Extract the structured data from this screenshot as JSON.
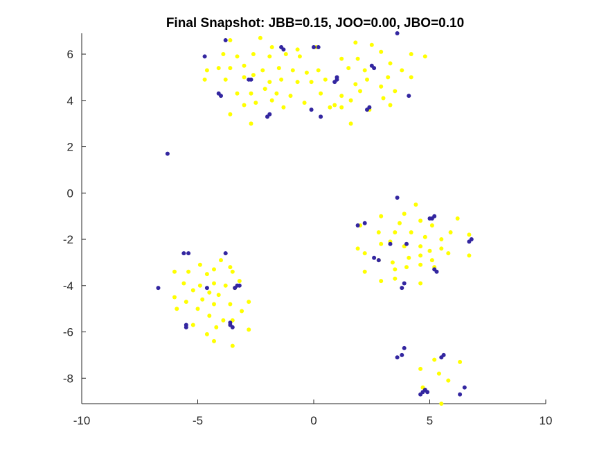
{
  "chart_data": {
    "type": "scatter",
    "title": "Final Snapshot: JBB=0.15, JOO=0.00, JBO=0.10",
    "xlabel": "",
    "ylabel": "",
    "xlim": [
      -10,
      10
    ],
    "ylim": [
      -9.1,
      6.9
    ],
    "xticks": [
      -10,
      -5,
      0,
      5,
      10
    ],
    "yticks": [
      -8,
      -6,
      -4,
      -2,
      0,
      2,
      4,
      6
    ],
    "grid": false,
    "legend": "none",
    "series": [
      {
        "color": "#ffff00",
        "points": [
          [
            -3.6,
            6.6
          ],
          [
            -2.3,
            6.7
          ],
          [
            -1.8,
            6.3
          ],
          [
            -0.7,
            6.2
          ],
          [
            0.1,
            6.3
          ],
          [
            1.8,
            6.5
          ],
          [
            2.5,
            6.4
          ],
          [
            -3.9,
            6.0
          ],
          [
            -3.3,
            5.9
          ],
          [
            -2.6,
            6.0
          ],
          [
            -1.9,
            5.9
          ],
          [
            -1.2,
            6.0
          ],
          [
            -0.6,
            5.9
          ],
          [
            1.2,
            5.8
          ],
          [
            1.9,
            5.8
          ],
          [
            2.9,
            6.1
          ],
          [
            4.2,
            6.0
          ],
          [
            -4.6,
            5.3
          ],
          [
            -4.1,
            5.4
          ],
          [
            -3.6,
            5.4
          ],
          [
            -3.0,
            5.5
          ],
          [
            -2.2,
            5.3
          ],
          [
            -1.5,
            5.4
          ],
          [
            -0.9,
            5.3
          ],
          [
            -0.3,
            5.2
          ],
          [
            0.2,
            5.3
          ],
          [
            1.5,
            5.4
          ],
          [
            2.2,
            5.3
          ],
          [
            3.3,
            5.6
          ],
          [
            3.8,
            5.3
          ],
          [
            4.8,
            5.9
          ],
          [
            -4.7,
            4.9
          ],
          [
            -3.8,
            4.9
          ],
          [
            -3.0,
            5.0
          ],
          [
            -2.6,
            5.1
          ],
          [
            -1.9,
            4.8
          ],
          [
            -1.4,
            4.9
          ],
          [
            -0.7,
            4.8
          ],
          [
            -0.1,
            4.8
          ],
          [
            0.5,
            4.9
          ],
          [
            1.8,
            4.7
          ],
          [
            2.3,
            4.9
          ],
          [
            2.9,
            4.6
          ],
          [
            3.2,
            5.0
          ],
          [
            4.2,
            5.0
          ],
          [
            -3.3,
            4.3
          ],
          [
            -2.7,
            4.3
          ],
          [
            -2.1,
            4.5
          ],
          [
            -1.6,
            4.3
          ],
          [
            -1.0,
            4.2
          ],
          [
            0.3,
            4.3
          ],
          [
            1.2,
            4.2
          ],
          [
            1.6,
            4.0
          ],
          [
            2.0,
            4.4
          ],
          [
            3.0,
            4.1
          ],
          [
            3.5,
            4.4
          ],
          [
            -3.0,
            3.8
          ],
          [
            -2.5,
            3.9
          ],
          [
            -1.8,
            4.0
          ],
          [
            -1.3,
            3.7
          ],
          [
            -0.4,
            3.9
          ],
          [
            0.9,
            3.8
          ],
          [
            1.2,
            3.7
          ],
          [
            3.3,
            3.8
          ],
          [
            -3.6,
            3.4
          ],
          [
            -2.7,
            3.0
          ],
          [
            0.7,
            3.7
          ],
          [
            1.6,
            3.0
          ],
          [
            2.4,
            3.6
          ],
          [
            4.4,
            -0.5
          ],
          [
            3.9,
            -0.9
          ],
          [
            2.9,
            -1.0
          ],
          [
            3.7,
            -1.3
          ],
          [
            4.6,
            -1.2
          ],
          [
            5.1,
            -1.4
          ],
          [
            6.2,
            -1.1
          ],
          [
            2.0,
            -1.4
          ],
          [
            2.8,
            -1.7
          ],
          [
            3.5,
            -1.7
          ],
          [
            4.2,
            -1.7
          ],
          [
            4.8,
            -1.9
          ],
          [
            5.5,
            -2.0
          ],
          [
            5.9,
            -1.7
          ],
          [
            6.7,
            -1.8
          ],
          [
            1.9,
            -2.4
          ],
          [
            2.9,
            -2.2
          ],
          [
            3.3,
            -2.1
          ],
          [
            3.9,
            -2.3
          ],
          [
            4.6,
            -2.3
          ],
          [
            5.0,
            -2.5
          ],
          [
            5.5,
            -2.4
          ],
          [
            2.2,
            -2.6
          ],
          [
            2.8,
            -2.9
          ],
          [
            3.4,
            -3.0
          ],
          [
            4.1,
            -2.8
          ],
          [
            4.6,
            -2.7
          ],
          [
            5.1,
            -2.9
          ],
          [
            5.8,
            -2.6
          ],
          [
            6.7,
            -2.7
          ],
          [
            2.2,
            -3.4
          ],
          [
            3.5,
            -3.3
          ],
          [
            4.0,
            -3.2
          ],
          [
            4.6,
            -3.1
          ],
          [
            5.2,
            -3.2
          ],
          [
            2.9,
            -3.8
          ],
          [
            3.5,
            -3.7
          ],
          [
            4.6,
            -3.9
          ],
          [
            -4.0,
            -2.9
          ],
          [
            -4.9,
            -3.1
          ],
          [
            -4.3,
            -3.3
          ],
          [
            -3.6,
            -3.2
          ],
          [
            -3.5,
            -3.4
          ],
          [
            -6.0,
            -3.4
          ],
          [
            -5.4,
            -3.4
          ],
          [
            -4.6,
            -3.5
          ],
          [
            -3.2,
            -3.8
          ],
          [
            -5.6,
            -3.9
          ],
          [
            -4.9,
            -4.0
          ],
          [
            -4.3,
            -3.9
          ],
          [
            -3.8,
            -4.0
          ],
          [
            -3.4,
            -4.1
          ],
          [
            -5.2,
            -4.2
          ],
          [
            -4.5,
            -4.3
          ],
          [
            -4.1,
            -4.4
          ],
          [
            -6.0,
            -4.5
          ],
          [
            -5.5,
            -4.7
          ],
          [
            -4.8,
            -4.6
          ],
          [
            -4.3,
            -4.8
          ],
          [
            -3.6,
            -4.8
          ],
          [
            -2.8,
            -4.7
          ],
          [
            -5.9,
            -5.0
          ],
          [
            -5.0,
            -5.0
          ],
          [
            -3.1,
            -5.1
          ],
          [
            -4.5,
            -5.3
          ],
          [
            -3.5,
            -5.5
          ],
          [
            -3.9,
            -5.5
          ],
          [
            -5.2,
            -5.7
          ],
          [
            -4.2,
            -5.8
          ],
          [
            -2.8,
            -5.9
          ],
          [
            -4.6,
            -6.1
          ],
          [
            -4.3,
            -6.4
          ],
          [
            -3.5,
            -6.6
          ],
          [
            5.2,
            -7.2
          ],
          [
            6.3,
            -7.3
          ],
          [
            4.6,
            -7.6
          ],
          [
            5.4,
            -7.8
          ],
          [
            5.8,
            -8.1
          ],
          [
            4.7,
            -8.4
          ],
          [
            5.5,
            -9.1
          ]
        ]
      },
      {
        "color": "#3326a0",
        "points": [
          [
            -4.7,
            5.9
          ],
          [
            -3.8,
            6.6
          ],
          [
            -1.4,
            6.3
          ],
          [
            -1.3,
            6.2
          ],
          [
            0.0,
            6.3
          ],
          [
            0.2,
            6.3
          ],
          [
            3.6,
            6.9
          ],
          [
            1.0,
            4.9
          ],
          [
            1.0,
            5.0
          ],
          [
            0.9,
            4.8
          ],
          [
            -2.7,
            4.9
          ],
          [
            -2.8,
            4.9
          ],
          [
            2.5,
            5.5
          ],
          [
            2.6,
            5.4
          ],
          [
            -4.1,
            4.3
          ],
          [
            -4.0,
            4.2
          ],
          [
            -1.9,
            3.4
          ],
          [
            -2.0,
            3.3
          ],
          [
            -0.1,
            3.6
          ],
          [
            0.3,
            3.3
          ],
          [
            2.4,
            3.7
          ],
          [
            2.3,
            3.6
          ],
          [
            4.1,
            4.2
          ],
          [
            -6.3,
            1.7
          ],
          [
            3.6,
            -0.2
          ],
          [
            5.1,
            -1.1
          ],
          [
            5.2,
            -1.0
          ],
          [
            5.0,
            -1.1
          ],
          [
            2.2,
            -1.3
          ],
          [
            1.9,
            -1.4
          ],
          [
            4.0,
            -2.2
          ],
          [
            3.3,
            -2.2
          ],
          [
            6.8,
            -2.0
          ],
          [
            6.7,
            -2.1
          ],
          [
            2.6,
            -2.8
          ],
          [
            2.8,
            -2.9
          ],
          [
            5.2,
            -3.3
          ],
          [
            5.3,
            -3.4
          ],
          [
            3.9,
            -3.9
          ],
          [
            3.8,
            -4.1
          ],
          [
            -5.6,
            -2.6
          ],
          [
            -5.4,
            -2.6
          ],
          [
            -3.8,
            -2.6
          ],
          [
            -3.3,
            -4.0
          ],
          [
            -3.4,
            -4.1
          ],
          [
            -3.2,
            -4.0
          ],
          [
            -4.6,
            -4.1
          ],
          [
            -6.7,
            -4.1
          ],
          [
            -5.5,
            -5.7
          ],
          [
            -5.5,
            -5.8
          ],
          [
            -3.6,
            -5.6
          ],
          [
            -3.6,
            -5.7
          ],
          [
            -3.5,
            -5.8
          ],
          [
            3.9,
            -6.7
          ],
          [
            3.8,
            -7.0
          ],
          [
            3.6,
            -7.1
          ],
          [
            5.6,
            -7.0
          ],
          [
            5.5,
            -7.1
          ],
          [
            6.5,
            -8.4
          ],
          [
            6.3,
            -8.7
          ],
          [
            4.8,
            -8.5
          ],
          [
            4.7,
            -8.6
          ],
          [
            4.6,
            -8.7
          ],
          [
            4.9,
            -8.6
          ]
        ]
      }
    ]
  }
}
